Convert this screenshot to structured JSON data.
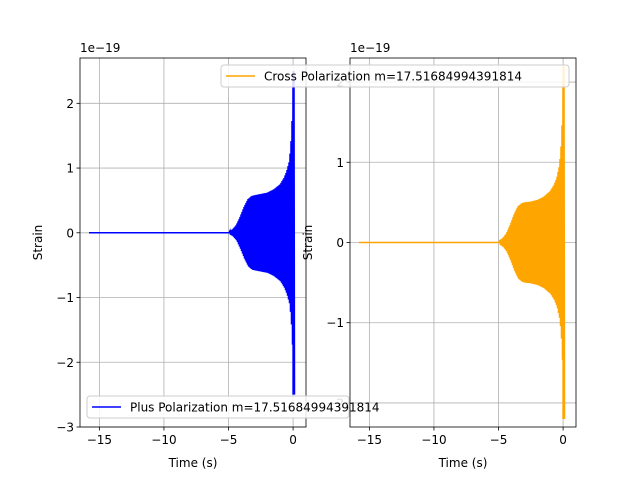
{
  "chart_data": [
    {
      "type": "line",
      "title": "",
      "xlabel": "Time (s)",
      "ylabel": "Strain",
      "y_offset_label": "1e−19",
      "xlim": [
        -16.5,
        1.0
      ],
      "ylim": [
        -3.0,
        2.7
      ],
      "xticks": [
        -15,
        -10,
        -5,
        0
      ],
      "xtick_labels": [
        "−15",
        "−10",
        "−5",
        "0"
      ],
      "yticks": [
        -3,
        -2,
        -1,
        0,
        1,
        2
      ],
      "ytick_labels": [
        "−3",
        "−2",
        "−1",
        "0",
        "1",
        "2"
      ],
      "grid": true,
      "legend_position": "lower-left",
      "series": [
        {
          "name": "Plus Polarization m=17.51684994391814",
          "color": "#0000ff",
          "x": [
            -15.8,
            -8.0,
            -6.0,
            -5.5,
            -5.0,
            -4.7,
            -4.4,
            -4.1,
            -3.8,
            -3.5,
            -3.2,
            -3.0,
            -2.5,
            -2.0,
            -1.5,
            -1.0,
            -0.7,
            -0.5,
            -0.3,
            -0.2,
            -0.1,
            -0.05,
            0.0
          ],
          "envelope": [
            0.0,
            0.0,
            0.005,
            0.01,
            0.02,
            0.05,
            0.12,
            0.25,
            0.4,
            0.52,
            0.57,
            0.58,
            0.6,
            0.62,
            0.67,
            0.75,
            0.85,
            0.95,
            1.1,
            1.3,
            1.6,
            2.0,
            2.5
          ]
        }
      ]
    },
    {
      "type": "line",
      "title": "",
      "xlabel": "Time (s)",
      "ylabel": "Strain",
      "y_offset_label": "1e−19",
      "xlim": [
        -16.5,
        1.0
      ],
      "ylim": [
        -2.3,
        2.3
      ],
      "xticks": [
        -15,
        -10,
        -5,
        0
      ],
      "xtick_labels": [
        "−15",
        "−10",
        "−5",
        "0"
      ],
      "yticks": [
        -2,
        -1,
        0,
        1,
        2
      ],
      "ytick_labels": [
        "−2",
        "−1",
        "0",
        "1",
        "2"
      ],
      "grid": true,
      "legend_position": "top",
      "series": [
        {
          "name": "Cross Polarization m=17.51684994391814",
          "color": "#ffa500",
          "x": [
            -15.8,
            -8.0,
            -6.0,
            -5.5,
            -5.0,
            -4.7,
            -4.4,
            -4.1,
            -3.8,
            -3.5,
            -3.2,
            -3.0,
            -2.5,
            -2.0,
            -1.5,
            -1.0,
            -0.7,
            -0.5,
            -0.3,
            -0.2,
            -0.1,
            -0.05,
            0.0
          ],
          "envelope": [
            0.0,
            0.0,
            0.005,
            0.01,
            0.02,
            0.05,
            0.11,
            0.22,
            0.35,
            0.45,
            0.49,
            0.5,
            0.51,
            0.53,
            0.57,
            0.64,
            0.72,
            0.8,
            0.95,
            1.1,
            1.35,
            1.7,
            2.2
          ]
        }
      ]
    }
  ]
}
